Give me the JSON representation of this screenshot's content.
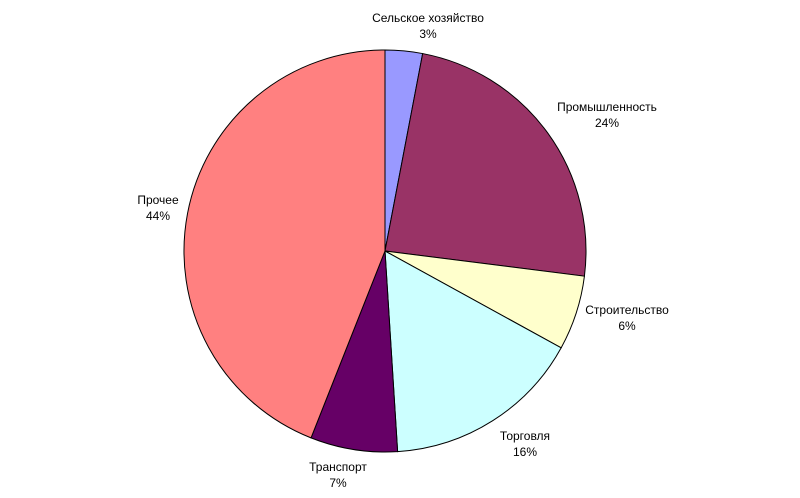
{
  "chart_data": {
    "type": "pie",
    "start": "top",
    "direction": "clockwise",
    "slices": [
      {
        "label": "Сельское хозяйство",
        "value": 3,
        "value_label": "3%",
        "color": "#9999FF"
      },
      {
        "label": "Промышленность",
        "value": 24,
        "value_label": "24%",
        "color": "#993366"
      },
      {
        "label": "Строительство",
        "value": 6,
        "value_label": "6%",
        "color": "#FFFFCC"
      },
      {
        "label": "Торговля",
        "value": 16,
        "value_label": "16%",
        "color": "#CCFFFF"
      },
      {
        "label": "Транспорт",
        "value": 7,
        "value_label": "7%",
        "color": "#660066"
      },
      {
        "label": "Прочее",
        "value": 44,
        "value_label": "44%",
        "color": "#FF8080"
      }
    ],
    "slice_border_color": "#000000",
    "label_color": "#000000",
    "background_color": "#FFFFFF"
  }
}
